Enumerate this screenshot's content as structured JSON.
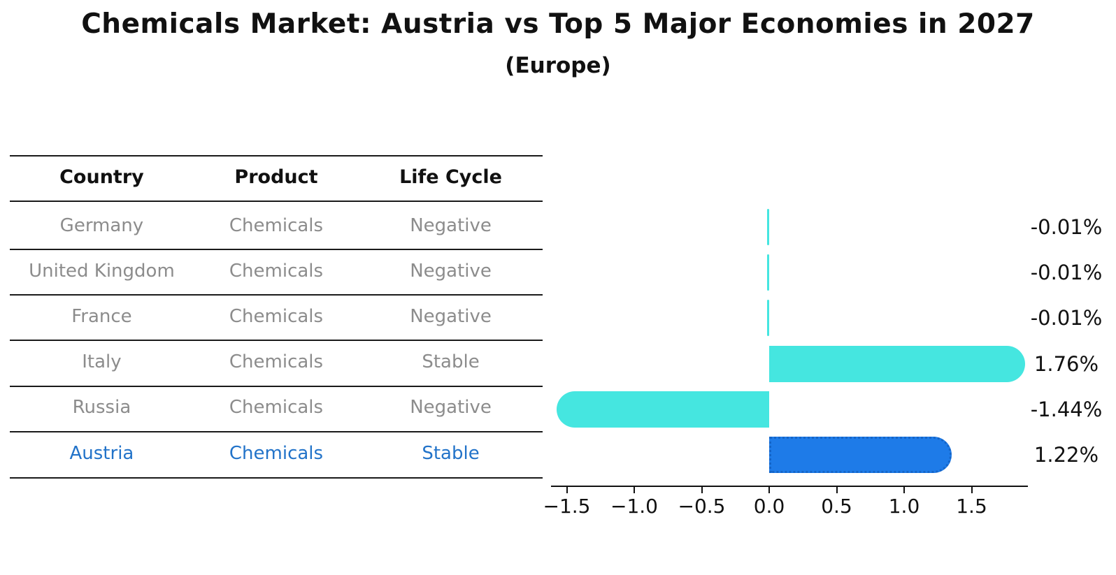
{
  "header": {
    "title": "Chemicals Market: Austria vs Top 5 Major Economies in 2027",
    "subtitle": "(Europe)"
  },
  "colors": {
    "bar_default": "#45e6e0",
    "bar_highlight": "#1e7be8",
    "bar_highlight_border": "#1565c8",
    "text_default": "#8c8c8c",
    "text_highlight": "#2273c9",
    "axis": "#111111"
  },
  "table": {
    "columns": [
      "Country",
      "Product",
      "Life Cycle"
    ],
    "rows": [
      {
        "country": "Germany",
        "product": "Chemicals",
        "life_cycle": "Negative",
        "highlight": false
      },
      {
        "country": "United Kingdom",
        "product": "Chemicals",
        "life_cycle": "Negative",
        "highlight": false
      },
      {
        "country": "France",
        "product": "Chemicals",
        "life_cycle": "Negative",
        "highlight": false
      },
      {
        "country": "Italy",
        "product": "Chemicals",
        "life_cycle": "Stable",
        "highlight": false
      },
      {
        "country": "Russia",
        "product": "Chemicals",
        "life_cycle": "Negative",
        "highlight": false
      },
      {
        "country": "Austria",
        "product": "Chemicals",
        "life_cycle": "Stable",
        "highlight": true
      }
    ]
  },
  "chart_data": {
    "type": "bar",
    "orientation": "horizontal",
    "title": "Chemicals Market: Austria vs Top 5 Major Economies in 2027",
    "subtitle": "(Europe)",
    "categories": [
      "Germany",
      "United Kingdom",
      "France",
      "Italy",
      "Russia",
      "Austria"
    ],
    "values": [
      -0.01,
      -0.01,
      -0.01,
      1.76,
      -1.44,
      1.22
    ],
    "value_labels": [
      "-0.01%",
      "-0.01%",
      "-0.01%",
      "1.76%",
      "-1.44%",
      "1.22%"
    ],
    "highlight_category": "Austria",
    "xlabel": "",
    "ylabel": "",
    "xlim": [
      -1.61,
      1.92
    ],
    "xticks": [
      -1.5,
      -1.0,
      -0.5,
      0.0,
      0.5,
      1.0,
      1.5
    ],
    "xtick_labels": [
      "−1.5",
      "−1.0",
      "−0.5",
      "0.0",
      "0.5",
      "1.0",
      "1.5"
    ],
    "grid": false,
    "legend": false
  }
}
